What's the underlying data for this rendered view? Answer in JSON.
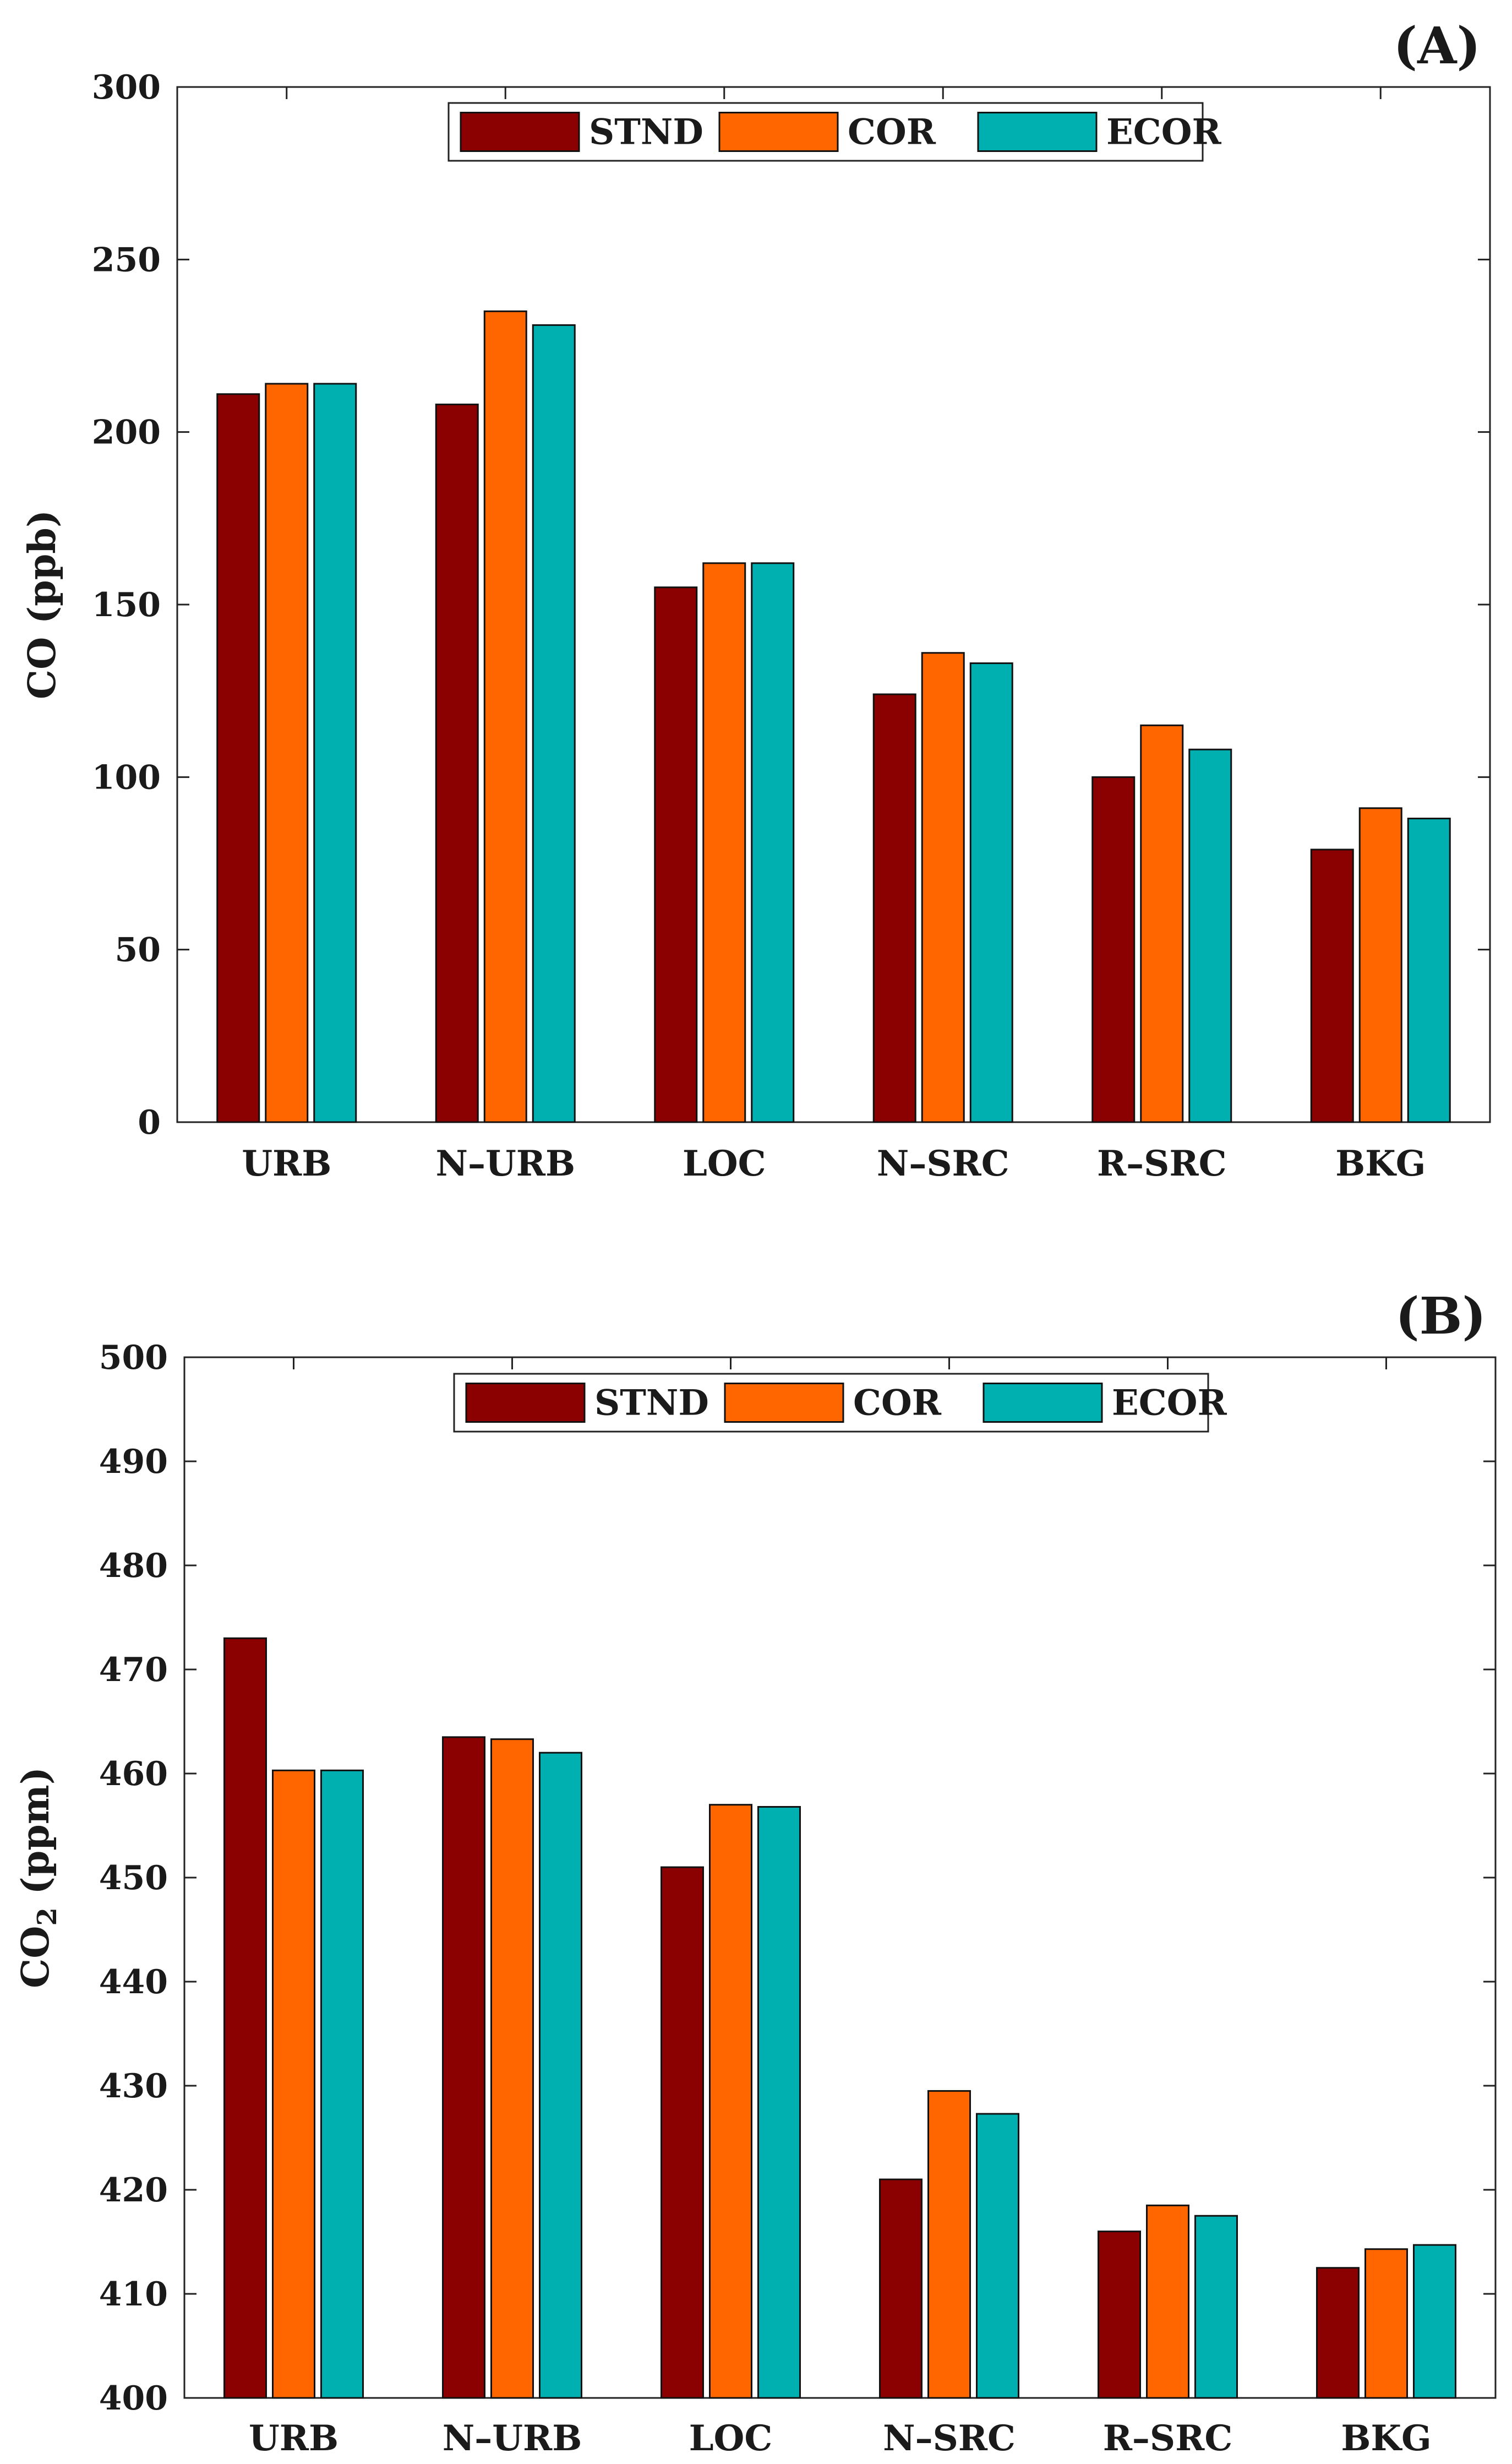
{
  "chart_data": [
    {
      "type": "bar",
      "panel_label": "(A)",
      "title": "",
      "xlabel": "",
      "ylabel": "CO (ppb)",
      "ylabel_parts": [
        "CO (ppb)"
      ],
      "ylim": [
        0,
        300
      ],
      "yticks": [
        0,
        50,
        100,
        150,
        200,
        250,
        300
      ],
      "ytick_labels": [
        "0",
        "50",
        "100",
        "150",
        "200",
        "250",
        "300"
      ],
      "categories": [
        "URB",
        "N–URB",
        "LOC",
        "N–SRC",
        "R–SRC",
        "BKG"
      ],
      "series": [
        {
          "name": "STND",
          "color": "#8b0000",
          "values": [
            211,
            208,
            155,
            124,
            100,
            79
          ]
        },
        {
          "name": "COR",
          "color": "#ff6600",
          "values": [
            214,
            235,
            162,
            136,
            115,
            91
          ]
        },
        {
          "name": "ECOR",
          "color": "#00b0b0",
          "values": [
            214,
            231,
            162,
            133,
            108,
            88
          ]
        }
      ],
      "legend_position": "top-center",
      "grid": false
    },
    {
      "type": "bar",
      "panel_label": "(B)",
      "title": "",
      "xlabel": "",
      "ylabel": "CO2 (ppm)",
      "ylabel_parts": [
        "CO",
        "2",
        " (ppm)"
      ],
      "ylim": [
        400,
        500
      ],
      "yticks": [
        400,
        410,
        420,
        430,
        440,
        450,
        460,
        470,
        480,
        490,
        500
      ],
      "ytick_labels": [
        "400",
        "410",
        "420",
        "430",
        "440",
        "450",
        "460",
        "470",
        "480",
        "490",
        "500"
      ],
      "categories": [
        "URB",
        "N–URB",
        "LOC",
        "N–SRC",
        "R–SRC",
        "BKG"
      ],
      "series": [
        {
          "name": "STND",
          "color": "#8b0000",
          "values": [
            473,
            463.5,
            451,
            421,
            416,
            412.5
          ]
        },
        {
          "name": "COR",
          "color": "#ff6600",
          "values": [
            460.3,
            463.3,
            457,
            429.5,
            418.5,
            414.3
          ]
        },
        {
          "name": "ECOR",
          "color": "#00b0b0",
          "values": [
            460.3,
            462,
            456.8,
            427.3,
            417.5,
            414.7
          ]
        }
      ],
      "legend_position": "top-center",
      "grid": false
    }
  ]
}
